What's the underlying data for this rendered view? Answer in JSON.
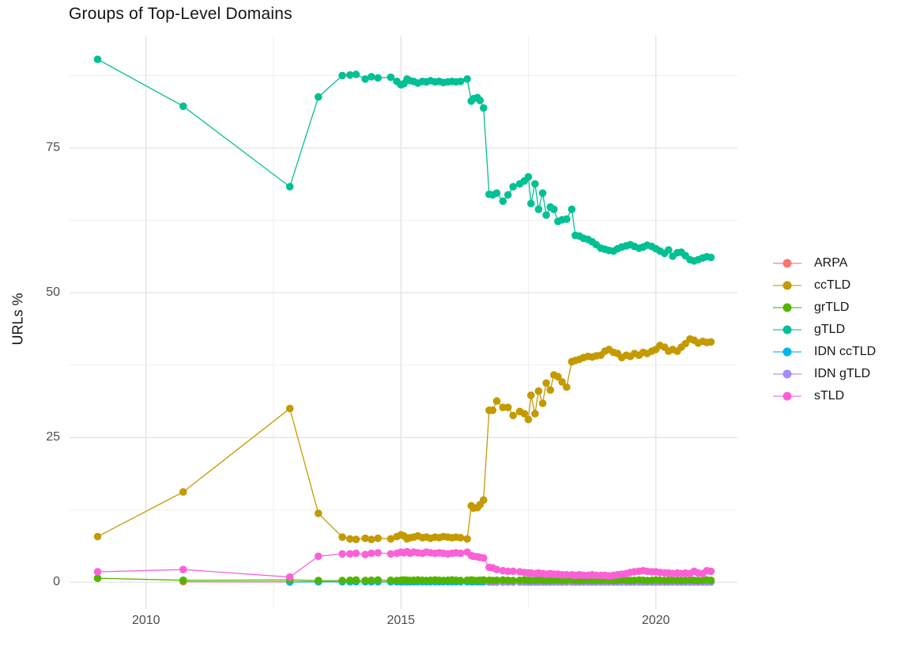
{
  "chart_data": {
    "type": "line",
    "title": "Groups of Top-Level Domains",
    "xlabel": "",
    "ylabel": "URLs %",
    "grid": true,
    "legend_position": "right",
    "xlim": [
      2008.5,
      2021.6
    ],
    "ylim": [
      -4.6,
      94.4
    ],
    "x_ticks": [
      2010,
      2015,
      2020
    ],
    "x_tick_labels": [
      "2010",
      "2015",
      "2020"
    ],
    "x_minor_ticks": [
      2012.5,
      2017.5
    ],
    "y_ticks": [
      0,
      25,
      50,
      75
    ],
    "y_tick_labels": [
      "0",
      "25",
      "50",
      "75"
    ],
    "y_minor_ticks": [
      12.5,
      37.5,
      62.5,
      87.5
    ],
    "colors": {
      "major_grid": "#e6e6e6",
      "minor_grid": "#f0f0f0",
      "tick_text": "#4d4d4d",
      "text": "#141414",
      "background": "#ffffff"
    },
    "x": [
      2009.05,
      2010.73,
      2012.82,
      2013.38,
      2013.85,
      2014.0,
      2014.12,
      2014.3,
      2014.42,
      2014.55,
      2014.8,
      2014.92,
      2015.0,
      2015.06,
      2015.12,
      2015.18,
      2015.25,
      2015.33,
      2015.42,
      2015.5,
      2015.58,
      2015.67,
      2015.75,
      2015.83,
      2015.92,
      2016.0,
      2016.08,
      2016.17,
      2016.3,
      2016.38,
      2016.42,
      2016.5,
      2016.55,
      2016.62,
      2016.73,
      2016.8,
      2016.88,
      2017.0,
      2017.1,
      2017.2,
      2017.33,
      2017.42,
      2017.5,
      2017.55,
      2017.63,
      2017.7,
      2017.78,
      2017.85,
      2017.93,
      2018.0,
      2018.08,
      2018.16,
      2018.25,
      2018.35,
      2018.42,
      2018.5,
      2018.58,
      2018.67,
      2018.75,
      2018.83,
      2018.92,
      2019.0,
      2019.08,
      2019.17,
      2019.25,
      2019.33,
      2019.42,
      2019.5,
      2019.58,
      2019.67,
      2019.75,
      2019.83,
      2019.92,
      2020.0,
      2020.08,
      2020.17,
      2020.25,
      2020.33,
      2020.42,
      2020.5,
      2020.58,
      2020.67,
      2020.75,
      2020.83,
      2020.92,
      2021.0,
      2021.08
    ],
    "series": [
      {
        "name": "ARPA",
        "color": "#F8766D",
        "values": [
          null,
          0.1,
          0.08,
          null,
          null,
          null,
          null,
          null,
          null,
          null,
          null,
          null,
          null,
          null,
          null,
          null,
          null,
          null,
          null,
          null,
          null,
          null,
          null,
          null,
          null,
          null,
          null,
          null,
          null,
          null,
          null,
          null,
          null,
          null,
          null,
          null,
          null,
          null,
          null,
          null,
          null,
          null,
          null,
          null,
          null,
          null,
          null,
          null,
          null,
          null,
          null,
          null,
          null,
          null,
          null,
          null,
          null,
          null,
          null,
          null,
          null,
          null,
          null,
          null,
          null,
          null,
          null,
          null,
          null,
          null,
          null,
          null,
          null,
          null,
          null,
          null,
          null,
          null,
          null,
          null,
          null,
          null,
          null,
          null,
          null,
          null,
          null
        ]
      },
      {
        "name": "ccTLD",
        "color": "#C49A00",
        "values": [
          7.9,
          15.6,
          30.0,
          11.9,
          7.8,
          7.5,
          7.4,
          7.6,
          7.4,
          7.6,
          7.5,
          7.9,
          8.2,
          8.0,
          7.5,
          7.7,
          7.8,
          8.0,
          7.7,
          7.8,
          7.6,
          7.8,
          7.7,
          7.9,
          7.8,
          7.7,
          7.8,
          7.7,
          7.5,
          13.2,
          12.8,
          12.9,
          13.4,
          14.2,
          29.7,
          29.7,
          31.3,
          30.2,
          30.2,
          28.8,
          29.5,
          29.1,
          28.1,
          32.3,
          29.1,
          33.0,
          30.9,
          34.4,
          33.2,
          35.8,
          35.5,
          34.6,
          33.7,
          38.1,
          38.3,
          38.5,
          38.8,
          39.0,
          38.9,
          39.1,
          39.2,
          39.9,
          40.2,
          39.7,
          39.5,
          38.8,
          39.2,
          39.0,
          39.5,
          39.2,
          39.7,
          39.5,
          39.9,
          40.2,
          40.9,
          40.6,
          39.9,
          40.2,
          39.9,
          40.6,
          41.2,
          42.0,
          41.8,
          41.3,
          41.6,
          41.4,
          41.5
        ]
      },
      {
        "name": "grTLD",
        "color": "#53B400",
        "values": [
          0.7,
          0.35,
          0.4,
          0.3,
          0.3,
          0.35,
          0.4,
          0.3,
          0.35,
          0.4,
          0.35,
          0.3,
          0.35,
          0.4,
          0.35,
          0.3,
          0.35,
          0.4,
          0.35,
          0.3,
          0.35,
          0.4,
          0.35,
          0.3,
          0.35,
          0.4,
          0.35,
          0.3,
          0.35,
          0.4,
          0.35,
          0.3,
          0.35,
          0.4,
          0.35,
          0.3,
          0.35,
          0.4,
          0.35,
          0.3,
          0.35,
          0.4,
          0.35,
          0.3,
          0.35,
          0.4,
          0.35,
          0.3,
          0.35,
          0.4,
          0.35,
          0.3,
          0.35,
          0.4,
          0.35,
          0.3,
          0.35,
          0.4,
          0.35,
          0.3,
          0.35,
          0.4,
          0.35,
          0.3,
          0.35,
          0.4,
          0.35,
          0.3,
          0.35,
          0.4,
          0.35,
          0.3,
          0.35,
          0.4,
          0.35,
          0.3,
          0.35,
          0.4,
          0.35,
          0.3,
          0.35,
          0.4,
          0.35,
          0.3,
          0.35,
          0.4,
          0.35
        ]
      },
      {
        "name": "gTLD",
        "color": "#00C094",
        "values": [
          90.3,
          82.2,
          68.3,
          83.8,
          87.5,
          87.6,
          87.7,
          86.9,
          87.3,
          87.1,
          87.2,
          86.5,
          85.9,
          86.1,
          86.9,
          86.6,
          86.5,
          86.2,
          86.5,
          86.4,
          86.6,
          86.4,
          86.5,
          86.3,
          86.4,
          86.5,
          86.4,
          86.5,
          86.9,
          83.1,
          83.5,
          83.7,
          83.2,
          81.9,
          67.0,
          66.9,
          67.2,
          65.8,
          66.9,
          68.3,
          68.8,
          69.3,
          70.0,
          65.4,
          68.8,
          64.4,
          67.2,
          63.4,
          64.8,
          64.4,
          62.3,
          62.6,
          62.7,
          64.4,
          59.9,
          59.8,
          59.4,
          59.2,
          58.8,
          58.3,
          57.7,
          57.5,
          57.3,
          57.2,
          57.6,
          57.9,
          58.1,
          58.3,
          58.0,
          57.7,
          57.9,
          58.2,
          58.0,
          57.6,
          57.2,
          56.8,
          57.4,
          56.3,
          56.9,
          57.0,
          56.4,
          55.7,
          55.5,
          55.7,
          56.0,
          56.2,
          56.1
        ]
      },
      {
        "name": "IDN ccTLD",
        "color": "#00B6EB",
        "values": [
          null,
          null,
          0.05,
          0.08,
          0.08,
          0.08,
          0.08,
          0.08,
          0.08,
          0.08,
          0.08,
          0.08,
          0.08,
          0.08,
          0.08,
          0.08,
          0.08,
          0.08,
          0.08,
          0.08,
          0.08,
          0.08,
          0.08,
          0.08,
          0.08,
          0.08,
          0.08,
          0.08,
          0.08,
          0.08,
          0.08,
          0.08,
          0.08,
          0.08,
          0.08,
          0.08,
          0.08,
          0.08,
          0.08,
          0.08,
          0.08,
          0.08,
          0.08,
          0.08,
          0.08,
          0.08,
          0.08,
          0.08,
          0.08,
          0.08,
          0.08,
          0.08,
          0.08,
          0.08,
          0.08,
          0.08,
          0.08,
          0.08,
          0.08,
          0.08,
          0.08,
          0.08,
          0.08,
          0.08,
          0.08,
          0.08,
          0.08,
          0.08,
          0.08,
          0.08,
          0.08,
          0.08,
          0.08,
          0.08,
          0.08,
          0.08,
          0.08,
          0.08,
          0.08,
          0.08,
          0.08,
          0.08,
          0.08,
          0.08,
          0.08,
          0.08,
          0.08
        ]
      },
      {
        "name": "IDN gTLD",
        "color": "#A58AFF",
        "values": [
          null,
          null,
          null,
          null,
          null,
          null,
          null,
          null,
          null,
          null,
          null,
          null,
          null,
          null,
          null,
          null,
          null,
          null,
          null,
          null,
          null,
          null,
          null,
          null,
          null,
          null,
          null,
          null,
          null,
          null,
          null,
          null,
          null,
          null,
          0.03,
          0.03,
          0.03,
          0.03,
          0.03,
          0.03,
          0.03,
          0.03,
          0.03,
          0.03,
          0.03,
          0.03,
          0.03,
          0.03,
          0.03,
          0.03,
          0.03,
          0.03,
          0.03,
          0.03,
          0.03,
          0.03,
          0.03,
          0.03,
          0.03,
          0.03,
          0.03,
          0.03,
          0.03,
          0.03,
          0.03,
          0.03,
          0.03,
          0.03,
          0.03,
          0.03,
          0.03,
          0.03,
          0.03,
          0.03,
          0.03,
          0.03,
          0.03,
          0.03,
          0.03,
          0.03,
          0.03,
          0.03,
          0.03,
          0.03,
          0.03,
          0.03,
          0.03
        ]
      },
      {
        "name": "sTLD",
        "color": "#FB61D7",
        "values": [
          1.8,
          2.2,
          0.9,
          4.5,
          4.9,
          4.9,
          5.0,
          4.8,
          5.0,
          5.1,
          4.9,
          5.0,
          5.2,
          5.1,
          5.3,
          5.0,
          5.2,
          5.1,
          5.0,
          5.2,
          5.1,
          5.0,
          5.1,
          5.0,
          4.9,
          5.0,
          5.1,
          5.0,
          5.2,
          4.6,
          4.5,
          4.4,
          4.3,
          4.2,
          2.6,
          2.5,
          2.2,
          2.0,
          1.9,
          1.9,
          1.8,
          1.7,
          1.6,
          1.6,
          1.5,
          1.6,
          1.5,
          1.4,
          1.5,
          1.4,
          1.4,
          1.3,
          1.3,
          1.3,
          1.2,
          1.3,
          1.2,
          1.2,
          1.3,
          1.2,
          1.2,
          1.2,
          1.1,
          1.2,
          1.3,
          1.4,
          1.5,
          1.7,
          1.8,
          1.9,
          2.0,
          1.9,
          1.8,
          1.8,
          1.7,
          1.6,
          1.6,
          1.5,
          1.6,
          1.5,
          1.6,
          1.5,
          1.9,
          1.6,
          1.5,
          2.0,
          1.9
        ]
      }
    ],
    "draw_order": [
      "ARPA",
      "ccTLD",
      "IDN ccTLD",
      "IDN gTLD",
      "grTLD",
      "gTLD",
      "sTLD"
    ],
    "legend_items": [
      "ARPA",
      "ccTLD",
      "grTLD",
      "gTLD",
      "IDN ccTLD",
      "IDN gTLD",
      "sTLD"
    ]
  }
}
